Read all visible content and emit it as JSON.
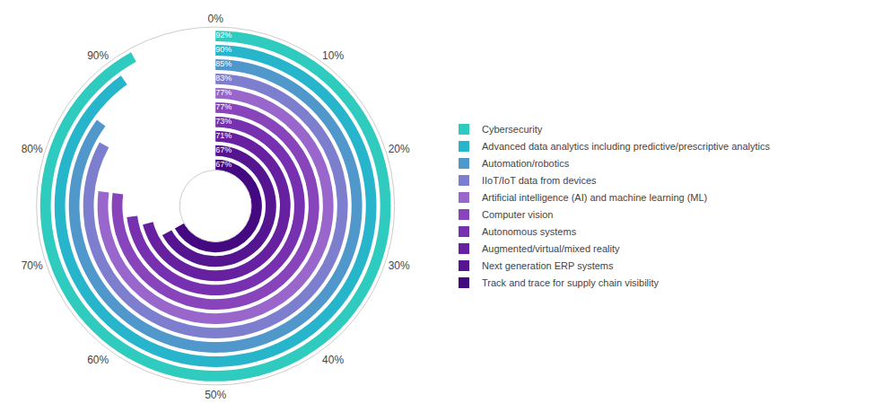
{
  "chart_data": {
    "type": "radial_bar",
    "categories": [
      "Cybersecurity",
      "Advanced data analytics including predictive/prescriptive analytics",
      "Automation/robotics",
      "IIoT/IoT data from devices",
      "Artificial intelligence (AI) and machine learning (ML)",
      "Computer vision",
      "Autonomous systems",
      "Augmented/virtual/mixed reality",
      "Next generation ERP systems",
      "Track and trace for supply chain visibility"
    ],
    "values": [
      92,
      90,
      85,
      83,
      77,
      77,
      73,
      71,
      67,
      67
    ],
    "value_labels": [
      "92%",
      "90%",
      "85%",
      "83%",
      "77%",
      "77%",
      "73%",
      "71%",
      "67%",
      "67%"
    ],
    "colors": [
      "#2ecbbe",
      "#27b5cb",
      "#5098cc",
      "#7e7ecf",
      "#9966cc",
      "#8844bb",
      "#7730b0",
      "#6620a0",
      "#551590",
      "#440880"
    ],
    "xlim": [
      0,
      100
    ],
    "xticks": [
      {
        "value": 0,
        "label": "0%"
      },
      {
        "value": 10,
        "label": "10%"
      },
      {
        "value": 20,
        "label": "20%"
      },
      {
        "value": 30,
        "label": "30%"
      },
      {
        "value": 40,
        "label": "40%"
      },
      {
        "value": 50,
        "label": "50%"
      },
      {
        "value": 60,
        "label": "60%"
      },
      {
        "value": 70,
        "label": "70%"
      },
      {
        "value": 80,
        "label": "80%"
      },
      {
        "value": 90,
        "label": "90%"
      }
    ],
    "data_labels": true,
    "legend": "right",
    "grid": false
  }
}
